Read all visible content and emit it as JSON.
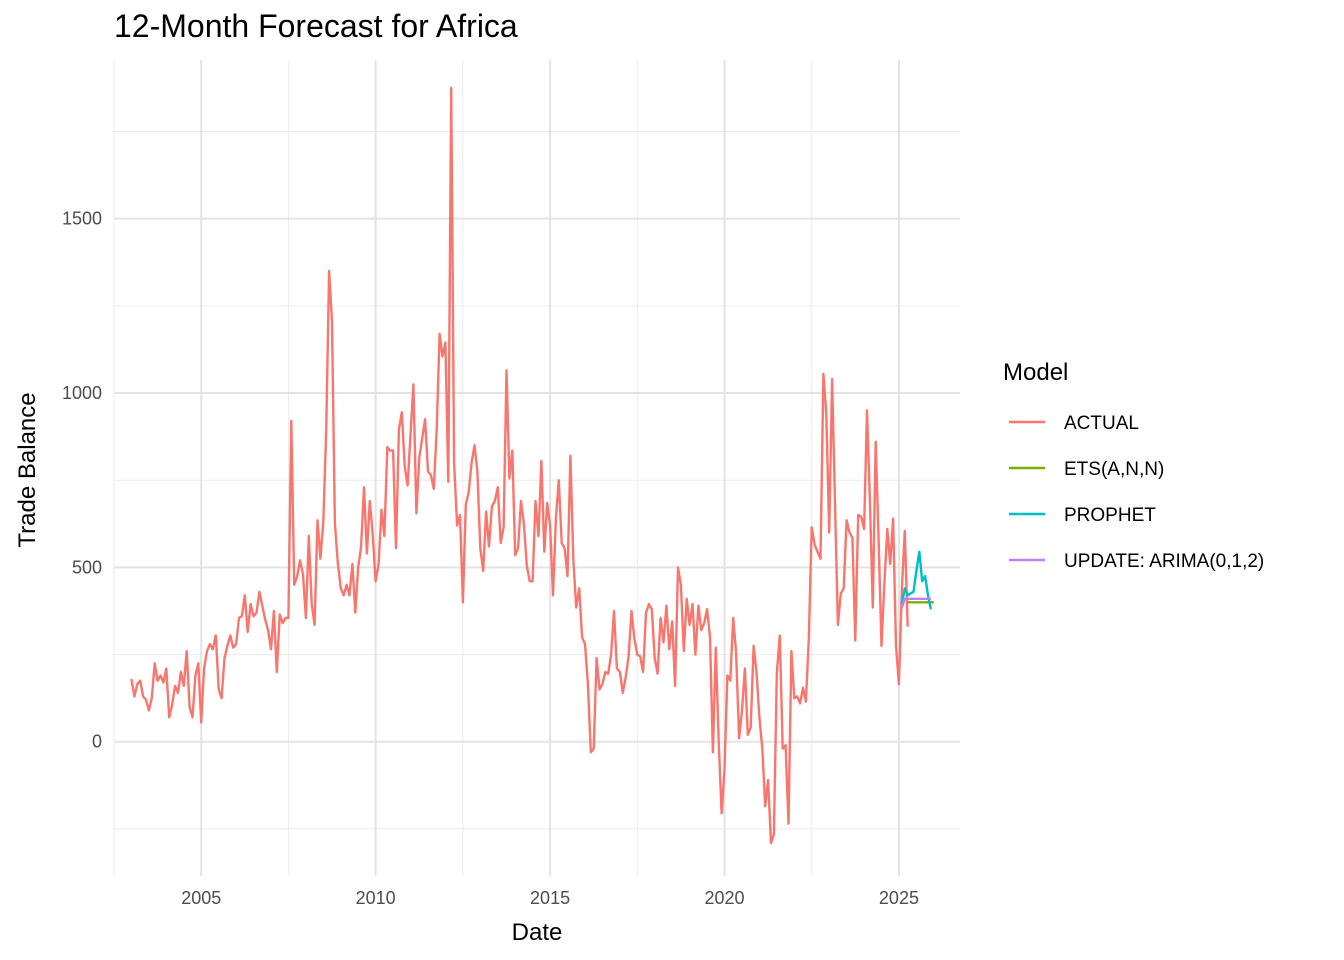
{
  "chart_data": {
    "type": "line",
    "title": "12-Month Forecast for Africa",
    "xlabel": "Date",
    "ylabel": "Trade Balance",
    "xlim": [
      2002.5,
      2026.75
    ],
    "ylim": [
      -385,
      1955
    ],
    "x_ticks": [
      2005,
      2010,
      2015,
      2020,
      2025
    ],
    "y_ticks": [
      0,
      500,
      1000,
      1500
    ],
    "grid": true,
    "legend": {
      "title": "Model",
      "position": "right"
    },
    "series": [
      {
        "name": "ACTUAL",
        "color": "#F8766D",
        "start": 2003.0,
        "step": 0.0833333,
        "values": [
          180,
          130,
          165,
          175,
          130,
          120,
          90,
          125,
          225,
          175,
          190,
          170,
          210,
          70,
          105,
          160,
          140,
          200,
          160,
          260,
          100,
          70,
          190,
          225,
          55,
          210,
          260,
          280,
          265,
          305,
          150,
          125,
          240,
          275,
          305,
          270,
          280,
          355,
          360,
          420,
          315,
          395,
          360,
          370,
          430,
          390,
          350,
          320,
          265,
          375,
          200,
          365,
          340,
          355,
          355,
          920,
          450,
          475,
          520,
          480,
          355,
          590,
          395,
          335,
          635,
          525,
          630,
          890,
          1350,
          1205,
          625,
          510,
          440,
          420,
          450,
          420,
          510,
          370,
          500,
          560,
          730,
          540,
          690,
          595,
          460,
          510,
          665,
          590,
          845,
          835,
          835,
          555,
          895,
          945,
          790,
          735,
          880,
          1025,
          655,
          815,
          870,
          925,
          775,
          765,
          725,
          895,
          1170,
          1105,
          1145,
          745,
          1875,
          800,
          620,
          650,
          400,
          680,
          715,
          800,
          850,
          775,
          555,
          490,
          660,
          560,
          675,
          690,
          730,
          570,
          615,
          1065,
          755,
          835,
          535,
          555,
          690,
          625,
          505,
          460,
          460,
          690,
          590,
          805,
          545,
          685,
          620,
          420,
          640,
          750,
          570,
          555,
          475,
          820,
          525,
          385,
          440,
          300,
          280,
          165,
          -30,
          -20,
          240,
          150,
          165,
          200,
          195,
          250,
          375,
          210,
          200,
          140,
          185,
          245,
          375,
          295,
          250,
          245,
          200,
          370,
          395,
          380,
          240,
          195,
          355,
          285,
          390,
          265,
          345,
          160,
          500,
          450,
          260,
          410,
          335,
          395,
          250,
          390,
          320,
          340,
          380,
          300,
          -30,
          270,
          0,
          -205,
          -80,
          190,
          175,
          355,
          255,
          10,
          90,
          210,
          20,
          40,
          275,
          200,
          70,
          -20,
          -185,
          -110,
          -290,
          -265,
          195,
          305,
          -20,
          -10,
          -235,
          260,
          125,
          130,
          110,
          155,
          115,
          295,
          615,
          565,
          545,
          525,
          1055,
          940,
          600,
          1040,
          685,
          335,
          425,
          440,
          635,
          600,
          585,
          290,
          650,
          645,
          610,
          950,
          690,
          385,
          860,
          580,
          275,
          455,
          610,
          510,
          640,
          275,
          165,
          440,
          605,
          330
        ]
      },
      {
        "name": "ETS(A,N,N)",
        "color": "#7CAE00",
        "start": 2025.25,
        "step": 0.0833333,
        "values": [
          400,
          400,
          400,
          400,
          400,
          400,
          400,
          400,
          400,
          400
        ]
      },
      {
        "name": "PROPHET",
        "color": "#00BFC4",
        "start": 2025.0833,
        "step": 0.0833333,
        "values": [
          395,
          440,
          420,
          425,
          430,
          490,
          545,
          460,
          475,
          420,
          380
        ]
      },
      {
        "name": "UPDATE: ARIMA(0,1,2)",
        "color": "#C77CFF",
        "start": 2025.0833,
        "step": 0.0833333,
        "values": [
          385,
          410,
          410,
          410,
          410,
          410,
          410,
          410,
          410,
          410,
          410
        ]
      }
    ]
  }
}
